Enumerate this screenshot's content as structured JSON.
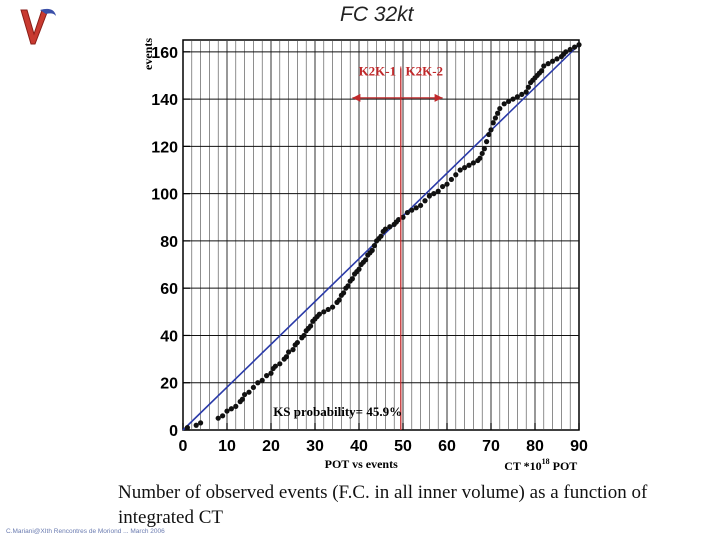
{
  "slide": {
    "caption": "Number of observed events (F.C. in all inner volume) as a function of integrated CT",
    "footer": "C.Mariani@XIth Rencontres de Moriond ... March 2006"
  },
  "chart_data": {
    "type": "line",
    "title": "FC 32kt",
    "xlabel": "POT vs events",
    "xunit_label": "CT *10",
    "xunit_exp": "18",
    "xunit_suffix": " POT",
    "ylabel": "events",
    "xlim": [
      0,
      90
    ],
    "ylim": [
      0,
      165
    ],
    "x_ticks": [
      0,
      10,
      20,
      30,
      40,
      50,
      60,
      70,
      80,
      90
    ],
    "y_ticks": [
      0,
      20,
      40,
      60,
      80,
      100,
      120,
      140,
      160
    ],
    "annotation": {
      "label": "K2K-1 | K2K-2",
      "arrow_from": 38.5,
      "arrow_to": 59,
      "divider_x": 49.5
    },
    "ks_text": "KS probability= 45.9%",
    "reference_line": {
      "x": [
        0,
        90
      ],
      "y": [
        0,
        163
      ]
    },
    "series": [
      {
        "name": "observed events",
        "points": [
          [
            1,
            1
          ],
          [
            3,
            2
          ],
          [
            4,
            3
          ],
          [
            8,
            5
          ],
          [
            9,
            6
          ],
          [
            10,
            8
          ],
          [
            11,
            9
          ],
          [
            12,
            10
          ],
          [
            13,
            12
          ],
          [
            13.5,
            13
          ],
          [
            14,
            15
          ],
          [
            15,
            16
          ],
          [
            16,
            18
          ],
          [
            17,
            20
          ],
          [
            18,
            21
          ],
          [
            19,
            23
          ],
          [
            20,
            24
          ],
          [
            20.5,
            26
          ],
          [
            21,
            27
          ],
          [
            22,
            28
          ],
          [
            23,
            30
          ],
          [
            23.5,
            31
          ],
          [
            24,
            33
          ],
          [
            25,
            34
          ],
          [
            25.5,
            36
          ],
          [
            26,
            37
          ],
          [
            27,
            39
          ],
          [
            27.5,
            40
          ],
          [
            28,
            42
          ],
          [
            28.5,
            43
          ],
          [
            29,
            44
          ],
          [
            29.5,
            46
          ],
          [
            30,
            47
          ],
          [
            30.5,
            48
          ],
          [
            31,
            49
          ],
          [
            32,
            50
          ],
          [
            33,
            51
          ],
          [
            34,
            52
          ],
          [
            35,
            54
          ],
          [
            35.5,
            55
          ],
          [
            36,
            57
          ],
          [
            36.5,
            58
          ],
          [
            37,
            60
          ],
          [
            37.5,
            61
          ],
          [
            38,
            63
          ],
          [
            38.5,
            64
          ],
          [
            39,
            66
          ],
          [
            39.5,
            67
          ],
          [
            40,
            68
          ],
          [
            40.5,
            70
          ],
          [
            41,
            71
          ],
          [
            41.5,
            72
          ],
          [
            42,
            74
          ],
          [
            42.5,
            75
          ],
          [
            43,
            76
          ],
          [
            43.5,
            78
          ],
          [
            44,
            80
          ],
          [
            44.5,
            81
          ],
          [
            45,
            82
          ],
          [
            45.5,
            84
          ],
          [
            46,
            85
          ],
          [
            47,
            86
          ],
          [
            48,
            87
          ],
          [
            48.5,
            88
          ],
          [
            49,
            89
          ],
          [
            50,
            90
          ],
          [
            51,
            92
          ],
          [
            52,
            93
          ],
          [
            53,
            94
          ],
          [
            54,
            95
          ],
          [
            55,
            97
          ],
          [
            56,
            99
          ],
          [
            57,
            100
          ],
          [
            58,
            101
          ],
          [
            59,
            103
          ],
          [
            60,
            104
          ],
          [
            61,
            106
          ],
          [
            62,
            108
          ],
          [
            63,
            110
          ],
          [
            64,
            111
          ],
          [
            65,
            112
          ],
          [
            66,
            113
          ],
          [
            67,
            114
          ],
          [
            67.5,
            115
          ],
          [
            68,
            117
          ],
          [
            68.5,
            119
          ],
          [
            69,
            122
          ],
          [
            69.5,
            125
          ],
          [
            70,
            127
          ],
          [
            70.5,
            130
          ],
          [
            71,
            132
          ],
          [
            71.5,
            134
          ],
          [
            72,
            136
          ],
          [
            73,
            138
          ],
          [
            74,
            139
          ],
          [
            75,
            140
          ],
          [
            76,
            141
          ],
          [
            77,
            142
          ],
          [
            78,
            143
          ],
          [
            78.5,
            145
          ],
          [
            79,
            147
          ],
          [
            79.5,
            148
          ],
          [
            80,
            149
          ],
          [
            80.5,
            150
          ],
          [
            81,
            151
          ],
          [
            81.5,
            152
          ],
          [
            82,
            154
          ],
          [
            83,
            155
          ],
          [
            84,
            156
          ],
          [
            85,
            157
          ],
          [
            86,
            158
          ],
          [
            86.5,
            159
          ],
          [
            87,
            160
          ],
          [
            88,
            161
          ],
          [
            89,
            162
          ],
          [
            90,
            163
          ]
        ]
      }
    ]
  }
}
